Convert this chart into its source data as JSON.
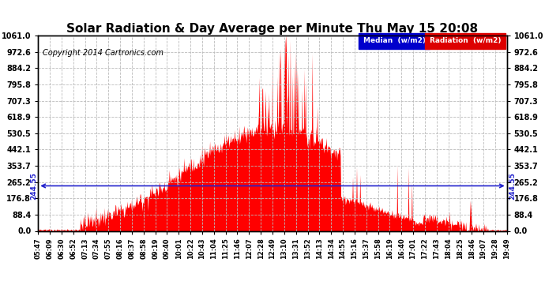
{
  "title": "Solar Radiation & Day Average per Minute Thu May 15 20:08",
  "copyright": "Copyright 2014 Cartronics.com",
  "legend_median": "Median  (w/m2)",
  "legend_radiation": "Radiation  (w/m2)",
  "median_value": 244.55,
  "ymin": 0.0,
  "ymax": 1061.0,
  "yticks": [
    0.0,
    88.4,
    176.8,
    265.2,
    353.7,
    442.1,
    530.5,
    618.9,
    707.3,
    795.8,
    884.2,
    972.6,
    1061.0
  ],
  "ytick_labels": [
    "0.0",
    "88.4",
    "176.8",
    "265.2",
    "353.7",
    "442.1",
    "530.5",
    "618.9",
    "707.3",
    "795.8",
    "884.2",
    "972.6",
    "1061.0"
  ],
  "bar_color": "#ff0000",
  "median_line_color": "#2222cc",
  "background_color": "#ffffff",
  "grid_color": "#bbbbbb",
  "title_color": "#000000",
  "title_fontsize": 11,
  "copyright_fontsize": 7,
  "xtick_labels": [
    "05:47",
    "06:09",
    "06:30",
    "06:52",
    "07:13",
    "07:34",
    "07:55",
    "08:16",
    "08:37",
    "08:58",
    "09:19",
    "09:40",
    "10:01",
    "10:22",
    "10:43",
    "11:04",
    "11:25",
    "11:46",
    "12:07",
    "12:28",
    "12:49",
    "13:10",
    "13:31",
    "13:52",
    "14:13",
    "14:34",
    "14:55",
    "15:16",
    "15:37",
    "15:58",
    "16:19",
    "16:40",
    "17:01",
    "17:22",
    "17:43",
    "18:04",
    "18:25",
    "18:46",
    "19:07",
    "19:28",
    "19:49"
  ],
  "num_points": 834,
  "legend_bg": "#0000aa",
  "legend_median_bg": "#0000cc",
  "legend_radiation_bg": "#dd0000"
}
